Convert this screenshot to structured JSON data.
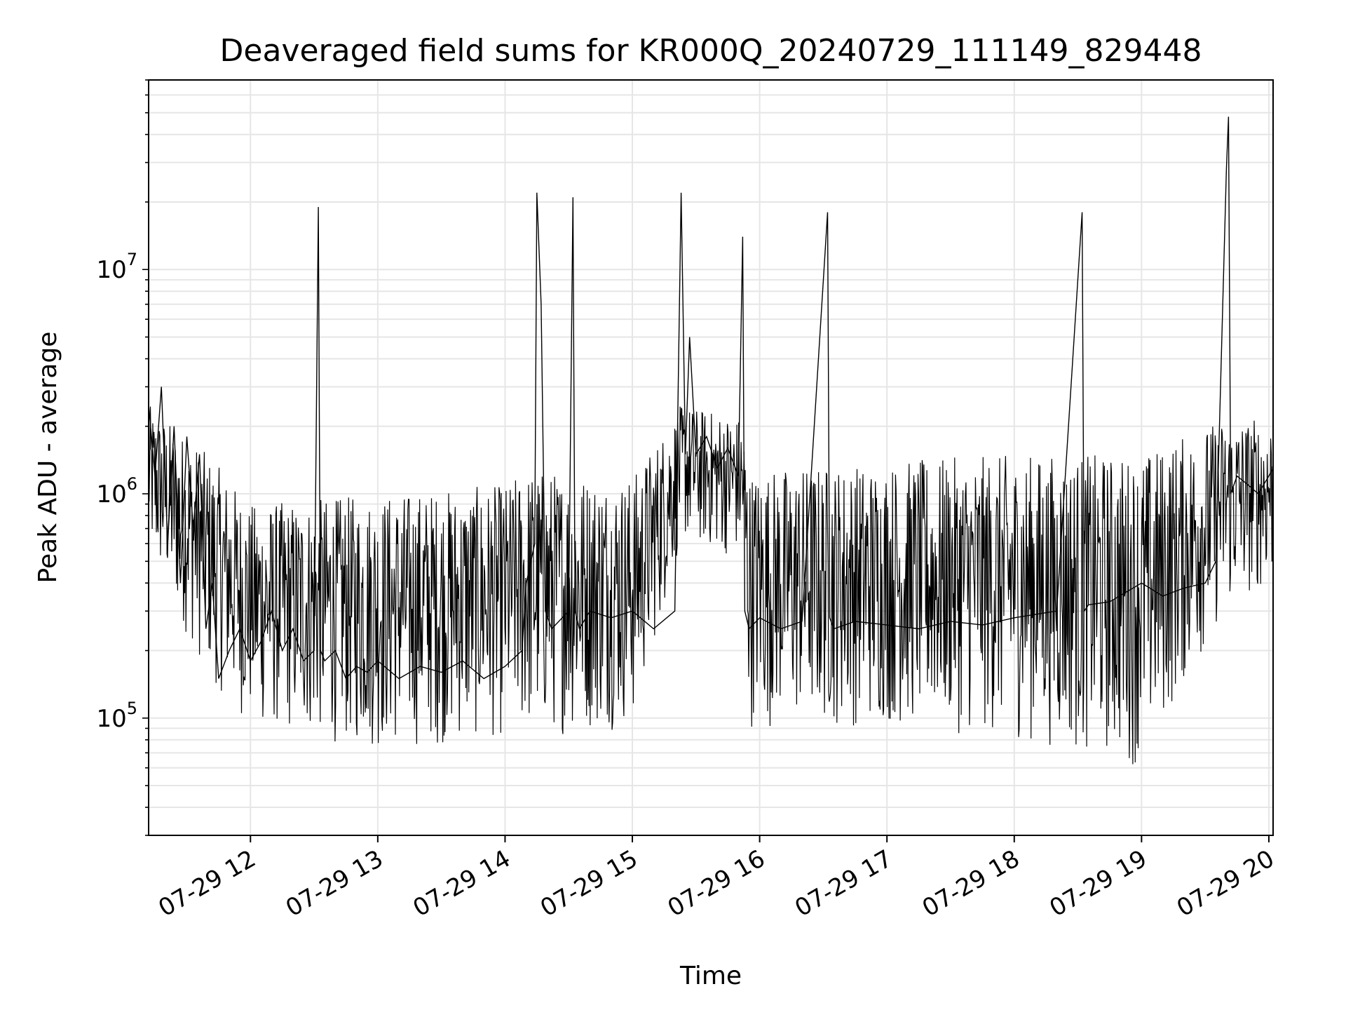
{
  "chart_data": {
    "type": "line",
    "title": "Deaveraged field sums for KR000Q_20240729_111149_829448",
    "xlabel": "Time",
    "ylabel": "Peak ADU - average",
    "yscale": "log",
    "xlim": [
      "2024-07-29 11:12",
      "2024-07-29 20:02"
    ],
    "ylim": [
      30000,
      70000000
    ],
    "grid": true,
    "line_color": "#000000",
    "x_ticks": [
      "07-29 12",
      "07-29 13",
      "07-29 14",
      "07-29 15",
      "07-29 16",
      "07-29 17",
      "07-29 18",
      "07-29 19",
      "07-29 20"
    ],
    "y_ticks": [
      {
        "base": "10",
        "exp": "5",
        "value": 100000
      },
      {
        "base": "10",
        "exp": "6",
        "value": 1000000
      },
      {
        "base": "10",
        "exp": "7",
        "value": 10000000
      }
    ],
    "series": [
      {
        "x": [
          "2024-07-29 11:12",
          "2024-07-29 11:15",
          "2024-07-29 11:18",
          "2024-07-29 11:21",
          "2024-07-29 11:24",
          "2024-07-29 11:27",
          "2024-07-29 11:30",
          "2024-07-29 11:33",
          "2024-07-29 11:36",
          "2024-07-29 11:39",
          "2024-07-29 11:42",
          "2024-07-29 11:45",
          "2024-07-29 11:50",
          "2024-07-29 11:55",
          "2024-07-29 12:00",
          "2024-07-29 12:05",
          "2024-07-29 12:10",
          "2024-07-29 12:15",
          "2024-07-29 12:20",
          "2024-07-29 12:25",
          "2024-07-29 12:30",
          "2024-07-29 12:32",
          "2024-07-29 12:33",
          "2024-07-29 12:35",
          "2024-07-29 12:40",
          "2024-07-29 12:45",
          "2024-07-29 12:50",
          "2024-07-29 12:55",
          "2024-07-29 13:00",
          "2024-07-29 13:10",
          "2024-07-29 13:20",
          "2024-07-29 13:30",
          "2024-07-29 13:40",
          "2024-07-29 13:50",
          "2024-07-29 14:00",
          "2024-07-29 14:08",
          "2024-07-29 14:10",
          "2024-07-29 14:14",
          "2024-07-29 14:15",
          "2024-07-29 14:17",
          "2024-07-29 14:19",
          "2024-07-29 14:22",
          "2024-07-29 14:30",
          "2024-07-29 14:32",
          "2024-07-29 14:33",
          "2024-07-29 14:35",
          "2024-07-29 14:40",
          "2024-07-29 14:50",
          "2024-07-29 15:00",
          "2024-07-29 15:10",
          "2024-07-29 15:20",
          "2024-07-29 15:23",
          "2024-07-29 15:25",
          "2024-07-29 15:27",
          "2024-07-29 15:30",
          "2024-07-29 15:35",
          "2024-07-29 15:40",
          "2024-07-29 15:45",
          "2024-07-29 15:50",
          "2024-07-29 15:52",
          "2024-07-29 15:53",
          "2024-07-29 15:55",
          "2024-07-29 16:00",
          "2024-07-29 16:10",
          "2024-07-29 16:20",
          "2024-07-29 16:32",
          "2024-07-29 16:33",
          "2024-07-29 16:35",
          "2024-07-29 16:45",
          "2024-07-29 17:00",
          "2024-07-29 17:15",
          "2024-07-29 17:30",
          "2024-07-29 17:45",
          "2024-07-29 18:00",
          "2024-07-29 18:10",
          "2024-07-29 18:20",
          "2024-07-29 18:32",
          "2024-07-29 18:33",
          "2024-07-29 18:35",
          "2024-07-29 18:45",
          "2024-07-29 19:00",
          "2024-07-29 19:10",
          "2024-07-29 19:20",
          "2024-07-29 19:30",
          "2024-07-29 19:35",
          "2024-07-29 19:40",
          "2024-07-29 19:41",
          "2024-07-29 19:42",
          "2024-07-29 19:45",
          "2024-07-29 19:50",
          "2024-07-29 19:55",
          "2024-07-29 20:00",
          "2024-07-29 20:02"
        ],
        "y": [
          2500000,
          1200000,
          3000000,
          600000,
          2000000,
          400000,
          1800000,
          700000,
          1500000,
          250000,
          400000,
          150000,
          200000,
          250000,
          180000,
          220000,
          300000,
          200000,
          250000,
          180000,
          200000,
          19000000,
          200000,
          180000,
          200000,
          150000,
          170000,
          160000,
          180000,
          150000,
          170000,
          160000,
          180000,
          150000,
          170000,
          200000,
          400000,
          600000,
          22000000,
          7000000,
          300000,
          250000,
          300000,
          21000000,
          300000,
          250000,
          300000,
          280000,
          300000,
          250000,
          300000,
          22000000,
          1500000,
          5000000,
          1500000,
          1800000,
          1300000,
          1600000,
          1200000,
          14000000,
          300000,
          250000,
          280000,
          250000,
          270000,
          18000000,
          280000,
          250000,
          270000,
          260000,
          250000,
          270000,
          260000,
          280000,
          290000,
          300000,
          18000000,
          300000,
          320000,
          330000,
          400000,
          350000,
          380000,
          400000,
          500000,
          28000000,
          48000000,
          1000000,
          1200000,
          1100000,
          1000000,
          1200000,
          1300000
        ]
      }
    ],
    "envelope": {
      "x": [
        "2024-07-29 11:12",
        "2024-07-29 11:40",
        "2024-07-29 12:00",
        "2024-07-29 13:00",
        "2024-07-29 14:00",
        "2024-07-29 14:10",
        "2024-07-29 15:00",
        "2024-07-29 15:23",
        "2024-07-29 15:52",
        "2024-07-29 15:55",
        "2024-07-29 17:00",
        "2024-07-29 18:00",
        "2024-07-29 19:00",
        "2024-07-29 19:40",
        "2024-07-29 20:02"
      ],
      "upper": [
        2500000,
        1500000,
        900000,
        1000000,
        1100000,
        1300000,
        1200000,
        2500000,
        2200000,
        1300000,
        1400000,
        1500000,
        1500000,
        2200000,
        2200000
      ],
      "lower": [
        500000,
        150000,
        90000,
        70000,
        80000,
        80000,
        90000,
        600000,
        500000,
        90000,
        90000,
        80000,
        60000,
        300000,
        400000
      ]
    }
  }
}
